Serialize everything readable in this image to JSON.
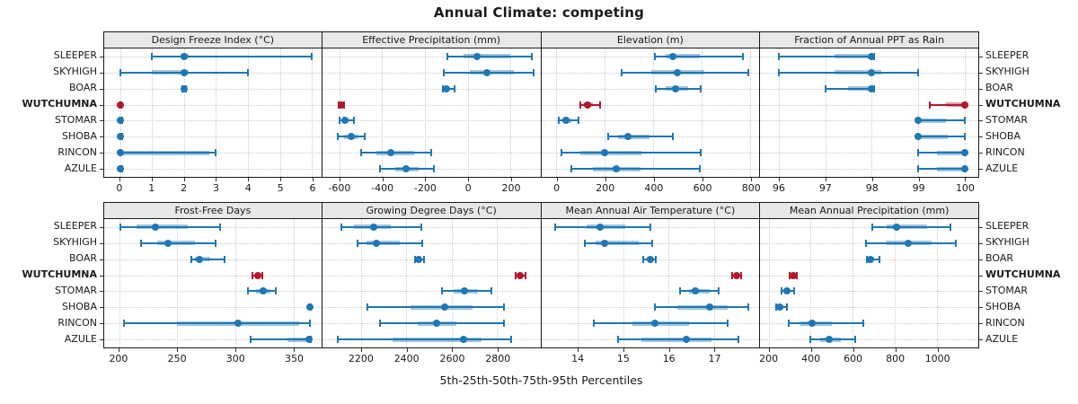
{
  "title": "Annual Climate: competing",
  "footer_label": "5th-25th-50th-75th-95th Percentiles",
  "stations": [
    "SLEEPER",
    "SKYHIGH",
    "BOAR",
    "WUTCHUMNA",
    "STOMAR",
    "SHOBA",
    "RINCON",
    "AZULE"
  ],
  "highlighted_station": "WUTCHUMNA",
  "colors": {
    "series": "#1f77b4",
    "highlight": "#b2182b",
    "strip_bg": "#e8e8e8",
    "grid": "#c9c9c9",
    "border": "#1a1a1a"
  },
  "chart_data": {
    "type": "dotplot-percentiles",
    "percentiles": [
      5,
      25,
      50,
      75,
      95
    ],
    "layout": {
      "rows": 2,
      "cols": 4,
      "grid": "dotted",
      "station_labels": "both-sides"
    },
    "panels": [
      {
        "title": "Design Freeze Index (°C)",
        "row": "top",
        "xlim": [
          -0.5,
          6.3
        ],
        "ticks": [
          0,
          1,
          2,
          3,
          4,
          5,
          6
        ],
        "values": [
          [
            1,
            1.9,
            2,
            2.15,
            6
          ],
          [
            0,
            1,
            2,
            2.15,
            4
          ],
          [
            1.95,
            2,
            2,
            2,
            2.05
          ],
          [
            0,
            0,
            0,
            0,
            0.03
          ],
          [
            0,
            0,
            0,
            0,
            0.05
          ],
          [
            0,
            0,
            0,
            0,
            0.05
          ],
          [
            0,
            0,
            0,
            2.8,
            3
          ],
          [
            0,
            0,
            0,
            0,
            0.05
          ]
        ]
      },
      {
        "title": "Effective Precipitation (mm)",
        "row": "top",
        "xlim": [
          -680,
          340
        ],
        "ticks": [
          -600,
          -400,
          -200,
          0,
          200
        ],
        "values": [
          [
            -95,
            -20,
            45,
            200,
            300
          ],
          [
            -110,
            10,
            90,
            215,
            310
          ],
          [
            -115,
            -108,
            -100,
            -85,
            -60
          ],
          [
            -602,
            -597,
            -590,
            -585,
            -580
          ],
          [
            -600,
            -588,
            -575,
            -555,
            -530
          ],
          [
            -608,
            -578,
            -545,
            -512,
            -480
          ],
          [
            -500,
            -425,
            -360,
            -250,
            -170
          ],
          [
            -410,
            -340,
            -290,
            -228,
            -160
          ]
        ]
      },
      {
        "title": "Elevation (m)",
        "row": "top",
        "xlim": [
          -63,
          837
        ],
        "ticks": [
          0,
          200,
          400,
          600,
          800
        ],
        "values": [
          [
            405,
            450,
            480,
            590,
            770
          ],
          [
            270,
            390,
            500,
            610,
            790
          ],
          [
            410,
            450,
            490,
            545,
            595
          ],
          [
            100,
            112,
            128,
            152,
            178
          ],
          [
            10,
            25,
            40,
            62,
            90
          ],
          [
            215,
            255,
            295,
            385,
            480
          ],
          [
            20,
            100,
            200,
            350,
            595
          ],
          [
            60,
            150,
            245,
            345,
            590
          ]
        ]
      },
      {
        "title": "Fraction of Annual PPT as Rain",
        "row": "top",
        "xlim": [
          95.6,
          100.3
        ],
        "ticks": [
          96,
          97,
          98,
          99,
          100
        ],
        "values": [
          [
            96,
            97.2,
            98,
            98,
            98.05
          ],
          [
            96,
            97.2,
            98,
            98.2,
            99
          ],
          [
            97,
            97.5,
            98,
            98,
            98.05
          ],
          [
            99.25,
            99.6,
            100,
            100,
            100
          ],
          [
            99,
            99,
            99,
            99.6,
            100
          ],
          [
            99,
            99,
            99,
            99.65,
            100
          ],
          [
            99,
            99.4,
            100,
            100,
            100
          ],
          [
            99,
            99.4,
            100,
            100,
            100
          ]
        ]
      },
      {
        "title": "Frost-Free Days",
        "row": "bottom",
        "xlim": [
          187,
          374
        ],
        "ticks": [
          200,
          250,
          300,
          350
        ],
        "values": [
          [
            201,
            215,
            231,
            259,
            287
          ],
          [
            219,
            233,
            242,
            265,
            283
          ],
          [
            262,
            265,
            269,
            278,
            291
          ],
          [
            315,
            317,
            319,
            321,
            323
          ],
          [
            311,
            318,
            324,
            330,
            335
          ],
          [
            363,
            364,
            364,
            364,
            365
          ],
          [
            204,
            250,
            302,
            355,
            364
          ],
          [
            313,
            345,
            363,
            365,
            365
          ]
        ]
      },
      {
        "title": "Growing Degree Days (°C)",
        "row": "bottom",
        "xlim": [
          2030,
          2990
        ],
        "ticks": [
          2200,
          2400,
          2600,
          2800
        ],
        "values": [
          [
            2115,
            2170,
            2255,
            2330,
            2465
          ],
          [
            2185,
            2225,
            2270,
            2370,
            2470
          ],
          [
            2440,
            2448,
            2455,
            2465,
            2478
          ],
          [
            2880,
            2893,
            2902,
            2912,
            2925
          ],
          [
            2555,
            2610,
            2655,
            2715,
            2775
          ],
          [
            2230,
            2420,
            2570,
            2690,
            2830
          ],
          [
            2285,
            2450,
            2535,
            2620,
            2830
          ],
          [
            2100,
            2340,
            2650,
            2730,
            2860
          ]
        ]
      },
      {
        "title": "Mean Annual Air Temperature (°C)",
        "row": "bottom",
        "xlim": [
          13.2,
          18.0
        ],
        "ticks": [
          14,
          15,
          16,
          17
        ],
        "values": [
          [
            13.5,
            14.2,
            14.5,
            15.05,
            15.6
          ],
          [
            14.15,
            14.4,
            14.6,
            15.35,
            15.65
          ],
          [
            15.45,
            15.52,
            15.6,
            15.66,
            15.72
          ],
          [
            17.4,
            17.46,
            17.5,
            17.55,
            17.6
          ],
          [
            16.25,
            16.45,
            16.6,
            16.9,
            17.1
          ],
          [
            15.7,
            16.2,
            16.9,
            17.3,
            17.75
          ],
          [
            14.35,
            15.2,
            15.7,
            16.45,
            17.3
          ],
          [
            14.9,
            15.4,
            16.4,
            16.95,
            17.55
          ]
        ]
      },
      {
        "title": "Mean Annual Precipitation (mm)",
        "row": "bottom",
        "xlim": [
          160,
          1197
        ],
        "ticks": [
          200,
          400,
          600,
          800,
          1000
        ],
        "values": [
          [
            695,
            760,
            810,
            955,
            1065
          ],
          [
            665,
            755,
            865,
            975,
            1090
          ],
          [
            668,
            676,
            685,
            700,
            725
          ],
          [
            300,
            308,
            316,
            324,
            332
          ],
          [
            260,
            272,
            285,
            300,
            320
          ],
          [
            235,
            245,
            255,
            268,
            285
          ],
          [
            295,
            350,
            405,
            500,
            650
          ],
          [
            400,
            445,
            490,
            545,
            610
          ]
        ]
      }
    ]
  }
}
